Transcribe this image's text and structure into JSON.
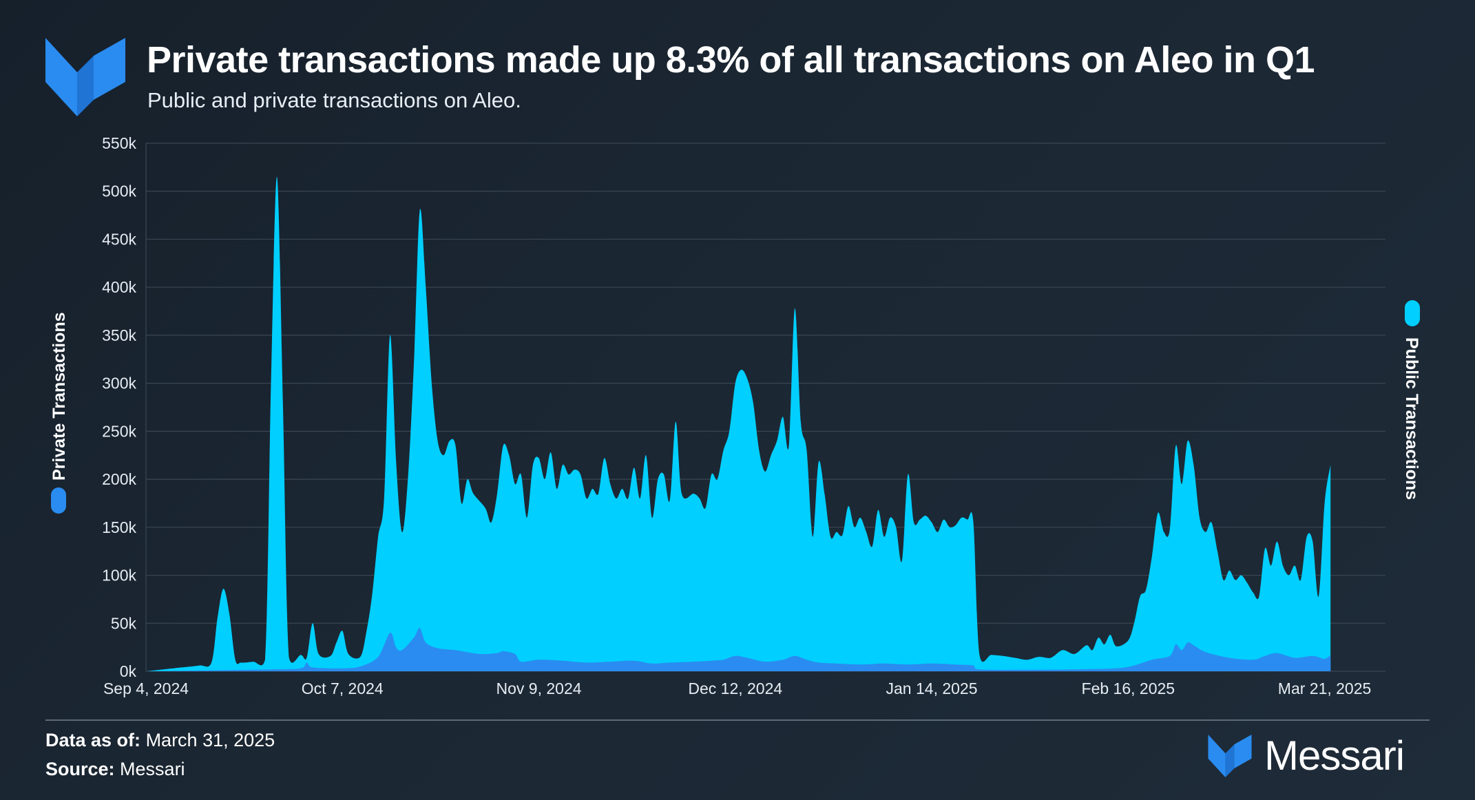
{
  "header": {
    "title": "Private transactions made up 8.3% of all transactions on Aleo in Q1",
    "subtitle": "Public and private transactions on Aleo."
  },
  "footer": {
    "data_as_of_label": "Data as of:",
    "data_as_of_value": "March 31, 2025",
    "source_label": "Source:",
    "source_value": "Messari"
  },
  "brand": {
    "name": "Messari",
    "logo_icon": "messari-logo-icon",
    "color": "#2a8cf0"
  },
  "chart_data": {
    "type": "area",
    "title": "Private transactions made up 8.3% of all transactions on Aleo in Q1",
    "subtitle": "Public and private transactions on Aleo.",
    "left_axis_label": "Private Transactions",
    "right_axis_label": "Public Transactions",
    "ylim": [
      0,
      550000
    ],
    "y_ticks": [
      "0k",
      "50k",
      "100k",
      "150k",
      "200k",
      "250k",
      "300k",
      "350k",
      "400k",
      "450k",
      "500k",
      "550k"
    ],
    "x_range": [
      "2024-09-04",
      "2025-03-31"
    ],
    "x_ticks": [
      {
        "date": "2024-09-04",
        "label": "Sep 4, 2024"
      },
      {
        "date": "2024-10-07",
        "label": "Oct 7, 2024"
      },
      {
        "date": "2024-11-09",
        "label": "Nov 9, 2024"
      },
      {
        "date": "2024-12-12",
        "label": "Dec 12, 2024"
      },
      {
        "date": "2025-01-14",
        "label": "Jan 14, 2025"
      },
      {
        "date": "2025-02-16",
        "label": "Feb 16, 2025"
      },
      {
        "date": "2025-03-21",
        "label": "Mar 21, 2025"
      }
    ],
    "grid": true,
    "series": [
      {
        "name": "Public Transactions",
        "color": "#00cfff",
        "points": [
          [
            "2024-09-04",
            0
          ],
          [
            "2024-09-07",
            2000
          ],
          [
            "2024-09-10",
            4000
          ],
          [
            "2024-09-13",
            6000
          ],
          [
            "2024-09-15",
            9000
          ],
          [
            "2024-09-16",
            55000
          ],
          [
            "2024-09-17",
            86000
          ],
          [
            "2024-09-18",
            60000
          ],
          [
            "2024-09-19",
            12000
          ],
          [
            "2024-09-20",
            9000
          ],
          [
            "2024-09-22",
            10000
          ],
          [
            "2024-09-24",
            12000
          ],
          [
            "2024-09-25",
            300000
          ],
          [
            "2024-09-26",
            515000
          ],
          [
            "2024-09-27",
            280000
          ],
          [
            "2024-09-28",
            15000
          ],
          [
            "2024-09-30",
            17000
          ],
          [
            "2024-10-01",
            14000
          ],
          [
            "2024-10-02",
            50000
          ],
          [
            "2024-10-03",
            18000
          ],
          [
            "2024-10-05",
            16000
          ],
          [
            "2024-10-06",
            30000
          ],
          [
            "2024-10-07",
            42000
          ],
          [
            "2024-10-08",
            18000
          ],
          [
            "2024-10-10",
            15000
          ],
          [
            "2024-10-11",
            40000
          ],
          [
            "2024-10-12",
            80000
          ],
          [
            "2024-10-13",
            140000
          ],
          [
            "2024-10-14",
            180000
          ],
          [
            "2024-10-15",
            350000
          ],
          [
            "2024-10-16",
            220000
          ],
          [
            "2024-10-17",
            145000
          ],
          [
            "2024-10-18",
            200000
          ],
          [
            "2024-10-19",
            320000
          ],
          [
            "2024-10-20",
            480000
          ],
          [
            "2024-10-21",
            400000
          ],
          [
            "2024-10-22",
            300000
          ],
          [
            "2024-10-23",
            240000
          ],
          [
            "2024-10-24",
            225000
          ],
          [
            "2024-10-25",
            240000
          ],
          [
            "2024-10-26",
            235000
          ],
          [
            "2024-10-27",
            175000
          ],
          [
            "2024-10-28",
            200000
          ],
          [
            "2024-10-29",
            185000
          ],
          [
            "2024-10-31",
            170000
          ],
          [
            "2024-11-01",
            155000
          ],
          [
            "2024-11-02",
            185000
          ],
          [
            "2024-11-03",
            235000
          ],
          [
            "2024-11-04",
            225000
          ],
          [
            "2024-11-05",
            195000
          ],
          [
            "2024-11-06",
            205000
          ],
          [
            "2024-11-07",
            160000
          ],
          [
            "2024-11-08",
            215000
          ],
          [
            "2024-11-09",
            222000
          ],
          [
            "2024-11-10",
            200000
          ],
          [
            "2024-11-11",
            228000
          ],
          [
            "2024-11-12",
            190000
          ],
          [
            "2024-11-13",
            215000
          ],
          [
            "2024-11-14",
            205000
          ],
          [
            "2024-11-15",
            210000
          ],
          [
            "2024-11-16",
            205000
          ],
          [
            "2024-11-17",
            180000
          ],
          [
            "2024-11-18",
            190000
          ],
          [
            "2024-11-19",
            185000
          ],
          [
            "2024-11-20",
            222000
          ],
          [
            "2024-11-21",
            195000
          ],
          [
            "2024-11-22",
            180000
          ],
          [
            "2024-11-23",
            190000
          ],
          [
            "2024-11-24",
            180000
          ],
          [
            "2024-11-25",
            212000
          ],
          [
            "2024-11-26",
            180000
          ],
          [
            "2024-11-27",
            225000
          ],
          [
            "2024-11-28",
            160000
          ],
          [
            "2024-11-29",
            200000
          ],
          [
            "2024-11-30",
            205000
          ],
          [
            "2024-12-01",
            178000
          ],
          [
            "2024-12-02",
            260000
          ],
          [
            "2024-12-03",
            185000
          ],
          [
            "2024-12-05",
            185000
          ],
          [
            "2024-12-06",
            180000
          ],
          [
            "2024-12-07",
            170000
          ],
          [
            "2024-12-08",
            205000
          ],
          [
            "2024-12-09",
            200000
          ],
          [
            "2024-12-10",
            230000
          ],
          [
            "2024-12-11",
            250000
          ],
          [
            "2024-12-12",
            300000
          ],
          [
            "2024-12-13",
            314000
          ],
          [
            "2024-12-14",
            305000
          ],
          [
            "2024-12-15",
            280000
          ],
          [
            "2024-12-16",
            230000
          ],
          [
            "2024-12-17",
            208000
          ],
          [
            "2024-12-18",
            225000
          ],
          [
            "2024-12-19",
            240000
          ],
          [
            "2024-12-20",
            265000
          ],
          [
            "2024-12-21",
            235000
          ],
          [
            "2024-12-22",
            378000
          ],
          [
            "2024-12-23",
            260000
          ],
          [
            "2024-12-24",
            230000
          ],
          [
            "2024-12-25",
            140000
          ],
          [
            "2024-12-26",
            218000
          ],
          [
            "2024-12-27",
            185000
          ],
          [
            "2024-12-28",
            140000
          ],
          [
            "2024-12-29",
            145000
          ],
          [
            "2024-12-30",
            142000
          ],
          [
            "2024-12-31",
            172000
          ],
          [
            "2025-01-01",
            150000
          ],
          [
            "2025-01-02",
            160000
          ],
          [
            "2025-01-03",
            145000
          ],
          [
            "2025-01-04",
            130000
          ],
          [
            "2025-01-05",
            168000
          ],
          [
            "2025-01-06",
            140000
          ],
          [
            "2025-01-07",
            160000
          ],
          [
            "2025-01-08",
            150000
          ],
          [
            "2025-01-09",
            115000
          ],
          [
            "2025-01-10",
            205000
          ],
          [
            "2025-01-11",
            155000
          ],
          [
            "2025-01-12",
            158000
          ],
          [
            "2025-01-13",
            162000
          ],
          [
            "2025-01-14",
            155000
          ],
          [
            "2025-01-15",
            145000
          ],
          [
            "2025-01-16",
            158000
          ],
          [
            "2025-01-17",
            150000
          ],
          [
            "2025-01-18",
            152000
          ],
          [
            "2025-01-19",
            160000
          ],
          [
            "2025-01-20",
            158000
          ],
          [
            "2025-01-21",
            155000
          ],
          [
            "2025-01-22",
            18000
          ],
          [
            "2025-01-24",
            17000
          ],
          [
            "2025-01-26",
            16000
          ],
          [
            "2025-01-28",
            14000
          ],
          [
            "2025-01-30",
            12000
          ],
          [
            "2025-02-01",
            15000
          ],
          [
            "2025-02-03",
            14000
          ],
          [
            "2025-02-05",
            22000
          ],
          [
            "2025-02-07",
            18000
          ],
          [
            "2025-02-09",
            27000
          ],
          [
            "2025-02-10",
            22000
          ],
          [
            "2025-02-11",
            35000
          ],
          [
            "2025-02-12",
            28000
          ],
          [
            "2025-02-13",
            38000
          ],
          [
            "2025-02-14",
            26000
          ],
          [
            "2025-02-16",
            32000
          ],
          [
            "2025-02-17",
            50000
          ],
          [
            "2025-02-18",
            78000
          ],
          [
            "2025-02-19",
            85000
          ],
          [
            "2025-02-20",
            120000
          ],
          [
            "2025-02-21",
            165000
          ],
          [
            "2025-02-22",
            145000
          ],
          [
            "2025-02-23",
            148000
          ],
          [
            "2025-02-24",
            235000
          ],
          [
            "2025-02-25",
            195000
          ],
          [
            "2025-02-26",
            240000
          ],
          [
            "2025-02-27",
            215000
          ],
          [
            "2025-02-28",
            160000
          ],
          [
            "2025-03-01",
            145000
          ],
          [
            "2025-03-02",
            155000
          ],
          [
            "2025-03-03",
            125000
          ],
          [
            "2025-03-04",
            95000
          ],
          [
            "2025-03-05",
            105000
          ],
          [
            "2025-03-06",
            95000
          ],
          [
            "2025-03-07",
            100000
          ],
          [
            "2025-03-08",
            92000
          ],
          [
            "2025-03-09",
            82000
          ],
          [
            "2025-03-10",
            78000
          ],
          [
            "2025-03-11",
            128000
          ],
          [
            "2025-03-12",
            110000
          ],
          [
            "2025-03-13",
            135000
          ],
          [
            "2025-03-14",
            110000
          ],
          [
            "2025-03-15",
            100000
          ],
          [
            "2025-03-16",
            110000
          ],
          [
            "2025-03-17",
            95000
          ],
          [
            "2025-03-18",
            140000
          ],
          [
            "2025-03-19",
            135000
          ],
          [
            "2025-03-20",
            78000
          ],
          [
            "2025-03-21",
            175000
          ],
          [
            "2025-03-22",
            215000
          ]
        ]
      },
      {
        "name": "Private Transactions",
        "color": "#2a8cf0",
        "points": [
          [
            "2024-09-04",
            0
          ],
          [
            "2024-09-15",
            1000
          ],
          [
            "2024-09-25",
            2000
          ],
          [
            "2024-09-30",
            3000
          ],
          [
            "2024-10-01",
            9000
          ],
          [
            "2024-10-02",
            4000
          ],
          [
            "2024-10-07",
            3000
          ],
          [
            "2024-10-10",
            5000
          ],
          [
            "2024-10-13",
            15000
          ],
          [
            "2024-10-15",
            40000
          ],
          [
            "2024-10-16",
            25000
          ],
          [
            "2024-10-17",
            22000
          ],
          [
            "2024-10-19",
            35000
          ],
          [
            "2024-10-20",
            45000
          ],
          [
            "2024-10-21",
            30000
          ],
          [
            "2024-10-23",
            24000
          ],
          [
            "2024-10-26",
            22000
          ],
          [
            "2024-10-30",
            18000
          ],
          [
            "2024-11-02",
            19000
          ],
          [
            "2024-11-03",
            21000
          ],
          [
            "2024-11-05",
            18000
          ],
          [
            "2024-11-06",
            10000
          ],
          [
            "2024-11-09",
            12000
          ],
          [
            "2024-11-13",
            11000
          ],
          [
            "2024-11-17",
            9000
          ],
          [
            "2024-11-21",
            10000
          ],
          [
            "2024-11-25",
            11000
          ],
          [
            "2024-11-28",
            8000
          ],
          [
            "2024-12-01",
            9000
          ],
          [
            "2024-12-05",
            10000
          ],
          [
            "2024-12-08",
            11000
          ],
          [
            "2024-12-10",
            12000
          ],
          [
            "2024-12-12",
            16000
          ],
          [
            "2024-12-14",
            14000
          ],
          [
            "2024-12-17",
            10000
          ],
          [
            "2024-12-20",
            12000
          ],
          [
            "2024-12-22",
            16000
          ],
          [
            "2024-12-24",
            12000
          ],
          [
            "2024-12-26",
            9000
          ],
          [
            "2024-12-29",
            8000
          ],
          [
            "2025-01-02",
            7000
          ],
          [
            "2025-01-06",
            8000
          ],
          [
            "2025-01-10",
            7000
          ],
          [
            "2025-01-14",
            8000
          ],
          [
            "2025-01-18",
            7000
          ],
          [
            "2025-01-21",
            6000
          ],
          [
            "2025-01-22",
            2000
          ],
          [
            "2025-01-30",
            1500
          ],
          [
            "2025-02-07",
            2000
          ],
          [
            "2025-02-14",
            3000
          ],
          [
            "2025-02-17",
            6000
          ],
          [
            "2025-02-20",
            12000
          ],
          [
            "2025-02-23",
            16000
          ],
          [
            "2025-02-24",
            28000
          ],
          [
            "2025-02-25",
            22000
          ],
          [
            "2025-02-26",
            30000
          ],
          [
            "2025-02-27",
            27000
          ],
          [
            "2025-03-01",
            20000
          ],
          [
            "2025-03-05",
            14000
          ],
          [
            "2025-03-09",
            12000
          ],
          [
            "2025-03-11",
            16000
          ],
          [
            "2025-03-13",
            19000
          ],
          [
            "2025-03-16",
            14000
          ],
          [
            "2025-03-19",
            16000
          ],
          [
            "2025-03-21",
            13000
          ],
          [
            "2025-03-22",
            17000
          ]
        ]
      }
    ]
  }
}
